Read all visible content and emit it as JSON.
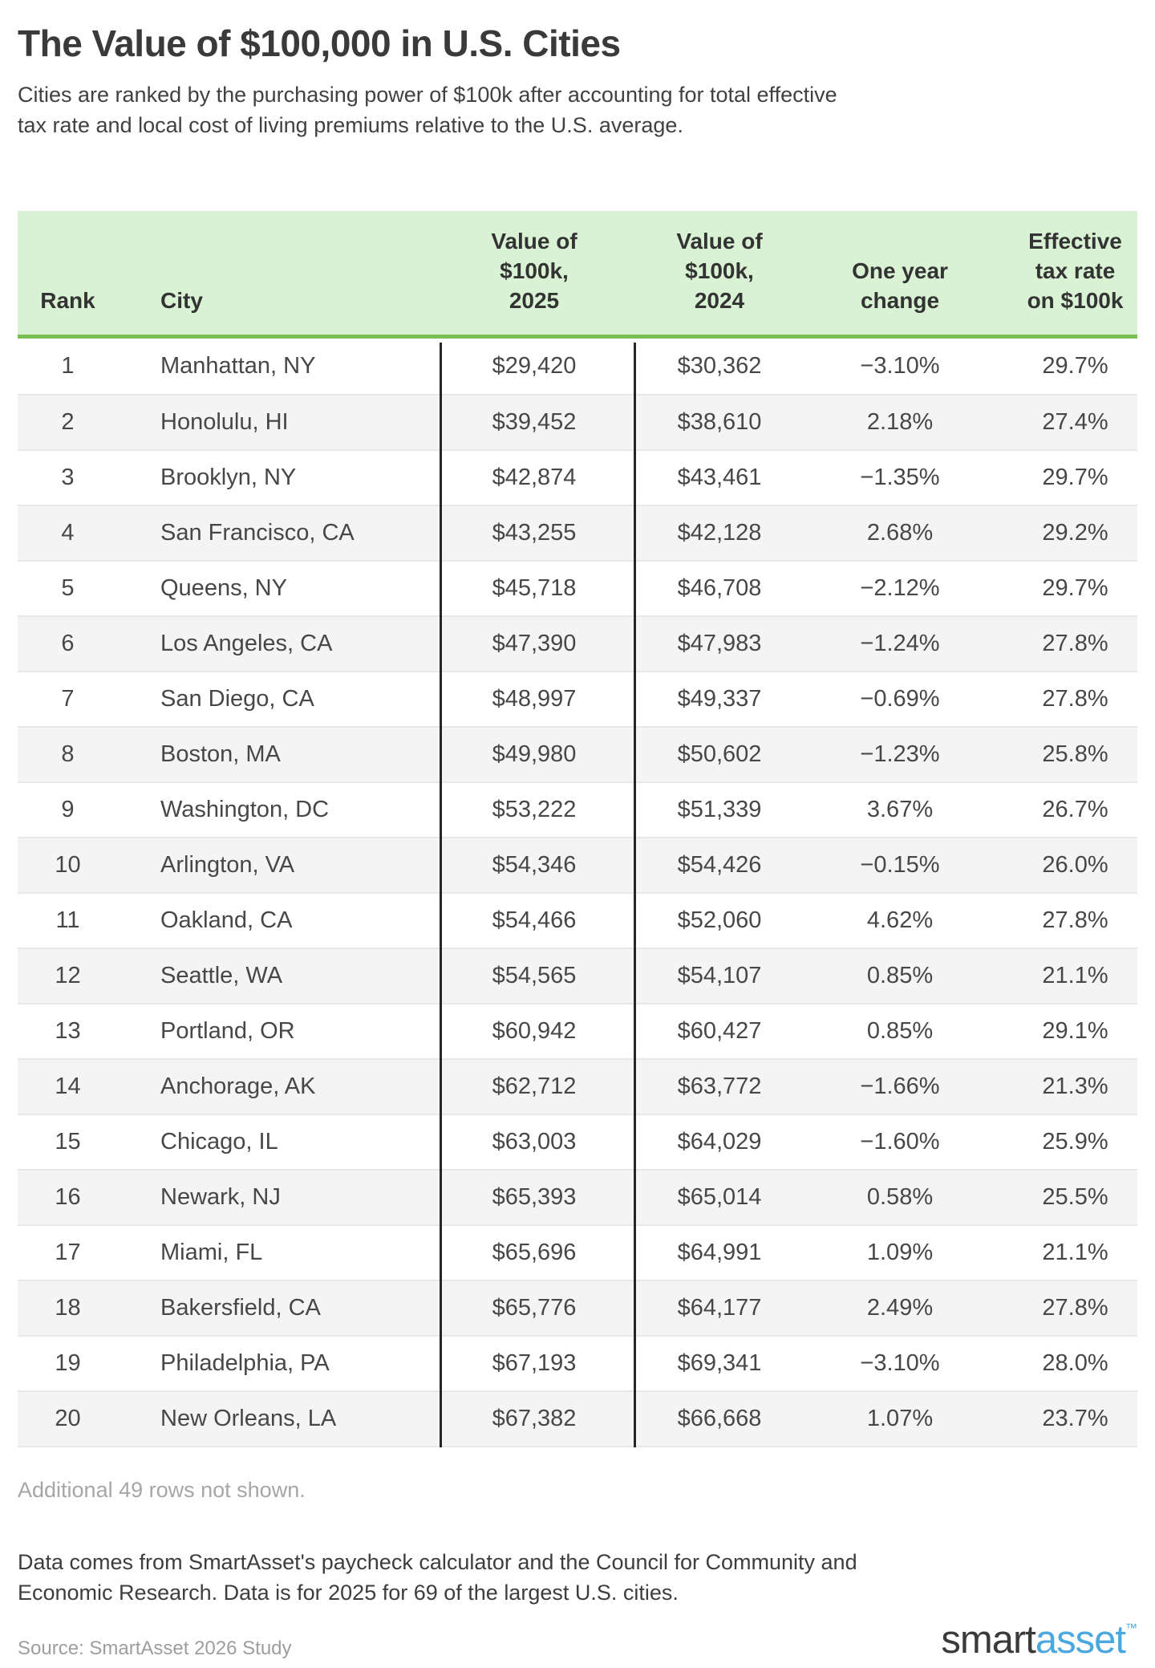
{
  "chart_data": {
    "type": "table",
    "title": "The Value of $100,000 in U.S. Cities",
    "subtitle_lines": [
      "Cities are ranked by the purchasing power of $100k after accounting for total effective",
      "tax rate and local cost of living premiums relative to the U.S. average."
    ],
    "headers": {
      "rank": "Rank",
      "city": "City",
      "value_2025_lines": [
        "Value of",
        "$100k,",
        "2025"
      ],
      "value_2024_lines": [
        "Value of",
        "$100k,",
        "2024"
      ],
      "change_lines": [
        "One year",
        "change"
      ],
      "tax_lines": [
        "Effective",
        "tax rate",
        "on $100k"
      ]
    },
    "rows": [
      {
        "rank": "1",
        "city": "Manhattan, NY",
        "value_2025": "$29,420",
        "value_2024": "$30,362",
        "change": "−3.10%",
        "tax": "29.7%"
      },
      {
        "rank": "2",
        "city": "Honolulu, HI",
        "value_2025": "$39,452",
        "value_2024": "$38,610",
        "change": "2.18%",
        "tax": "27.4%"
      },
      {
        "rank": "3",
        "city": "Brooklyn, NY",
        "value_2025": "$42,874",
        "value_2024": "$43,461",
        "change": "−1.35%",
        "tax": "29.7%"
      },
      {
        "rank": "4",
        "city": "San Francisco, CA",
        "value_2025": "$43,255",
        "value_2024": "$42,128",
        "change": "2.68%",
        "tax": "29.2%"
      },
      {
        "rank": "5",
        "city": "Queens, NY",
        "value_2025": "$45,718",
        "value_2024": "$46,708",
        "change": "−2.12%",
        "tax": "29.7%"
      },
      {
        "rank": "6",
        "city": "Los Angeles, CA",
        "value_2025": "$47,390",
        "value_2024": "$47,983",
        "change": "−1.24%",
        "tax": "27.8%"
      },
      {
        "rank": "7",
        "city": "San Diego, CA",
        "value_2025": "$48,997",
        "value_2024": "$49,337",
        "change": "−0.69%",
        "tax": "27.8%"
      },
      {
        "rank": "8",
        "city": "Boston, MA",
        "value_2025": "$49,980",
        "value_2024": "$50,602",
        "change": "−1.23%",
        "tax": "25.8%"
      },
      {
        "rank": "9",
        "city": "Washington, DC",
        "value_2025": "$53,222",
        "value_2024": "$51,339",
        "change": "3.67%",
        "tax": "26.7%"
      },
      {
        "rank": "10",
        "city": "Arlington, VA",
        "value_2025": "$54,346",
        "value_2024": "$54,426",
        "change": "−0.15%",
        "tax": "26.0%"
      },
      {
        "rank": "11",
        "city": "Oakland, CA",
        "value_2025": "$54,466",
        "value_2024": "$52,060",
        "change": "4.62%",
        "tax": "27.8%"
      },
      {
        "rank": "12",
        "city": "Seattle, WA",
        "value_2025": "$54,565",
        "value_2024": "$54,107",
        "change": "0.85%",
        "tax": "21.1%"
      },
      {
        "rank": "13",
        "city": "Portland, OR",
        "value_2025": "$60,942",
        "value_2024": "$60,427",
        "change": "0.85%",
        "tax": "29.1%"
      },
      {
        "rank": "14",
        "city": "Anchorage, AK",
        "value_2025": "$62,712",
        "value_2024": "$63,772",
        "change": "−1.66%",
        "tax": "21.3%"
      },
      {
        "rank": "15",
        "city": "Chicago, IL",
        "value_2025": "$63,003",
        "value_2024": "$64,029",
        "change": "−1.60%",
        "tax": "25.9%"
      },
      {
        "rank": "16",
        "city": "Newark, NJ",
        "value_2025": "$65,393",
        "value_2024": "$65,014",
        "change": "0.58%",
        "tax": "25.5%"
      },
      {
        "rank": "17",
        "city": "Miami, FL",
        "value_2025": "$65,696",
        "value_2024": "$64,991",
        "change": "1.09%",
        "tax": "21.1%"
      },
      {
        "rank": "18",
        "city": "Bakersfield, CA",
        "value_2025": "$65,776",
        "value_2024": "$64,177",
        "change": "2.49%",
        "tax": "27.8%"
      },
      {
        "rank": "19",
        "city": "Philadelphia, PA",
        "value_2025": "$67,193",
        "value_2024": "$69,341",
        "change": "−3.10%",
        "tax": "28.0%"
      },
      {
        "rank": "20",
        "city": "New Orleans, LA",
        "value_2025": "$67,382",
        "value_2024": "$66,668",
        "change": "1.07%",
        "tax": "23.7%"
      }
    ],
    "footer": {
      "additional_note": "Additional 49 rows not shown.",
      "data_note_lines": [
        "Data comes from SmartAsset's paycheck calculator and the Council for Community and",
        "Economic Research. Data is for 2025 for 69 of the largest U.S. cities."
      ],
      "source": "Source: SmartAsset 2026 Study"
    },
    "logo": {
      "smart": "smart",
      "asset": "asset",
      "trademark": "™"
    },
    "colors": {
      "header_bg": "#d9f2d4",
      "header_rule": "#79bf53",
      "alt_row_bg": "#f4f4f4",
      "column_divider": "#262626",
      "row_divider": "#e8e8e8",
      "logo_blue": "#4aa8de",
      "muted_text": "#a6a6a6"
    }
  }
}
